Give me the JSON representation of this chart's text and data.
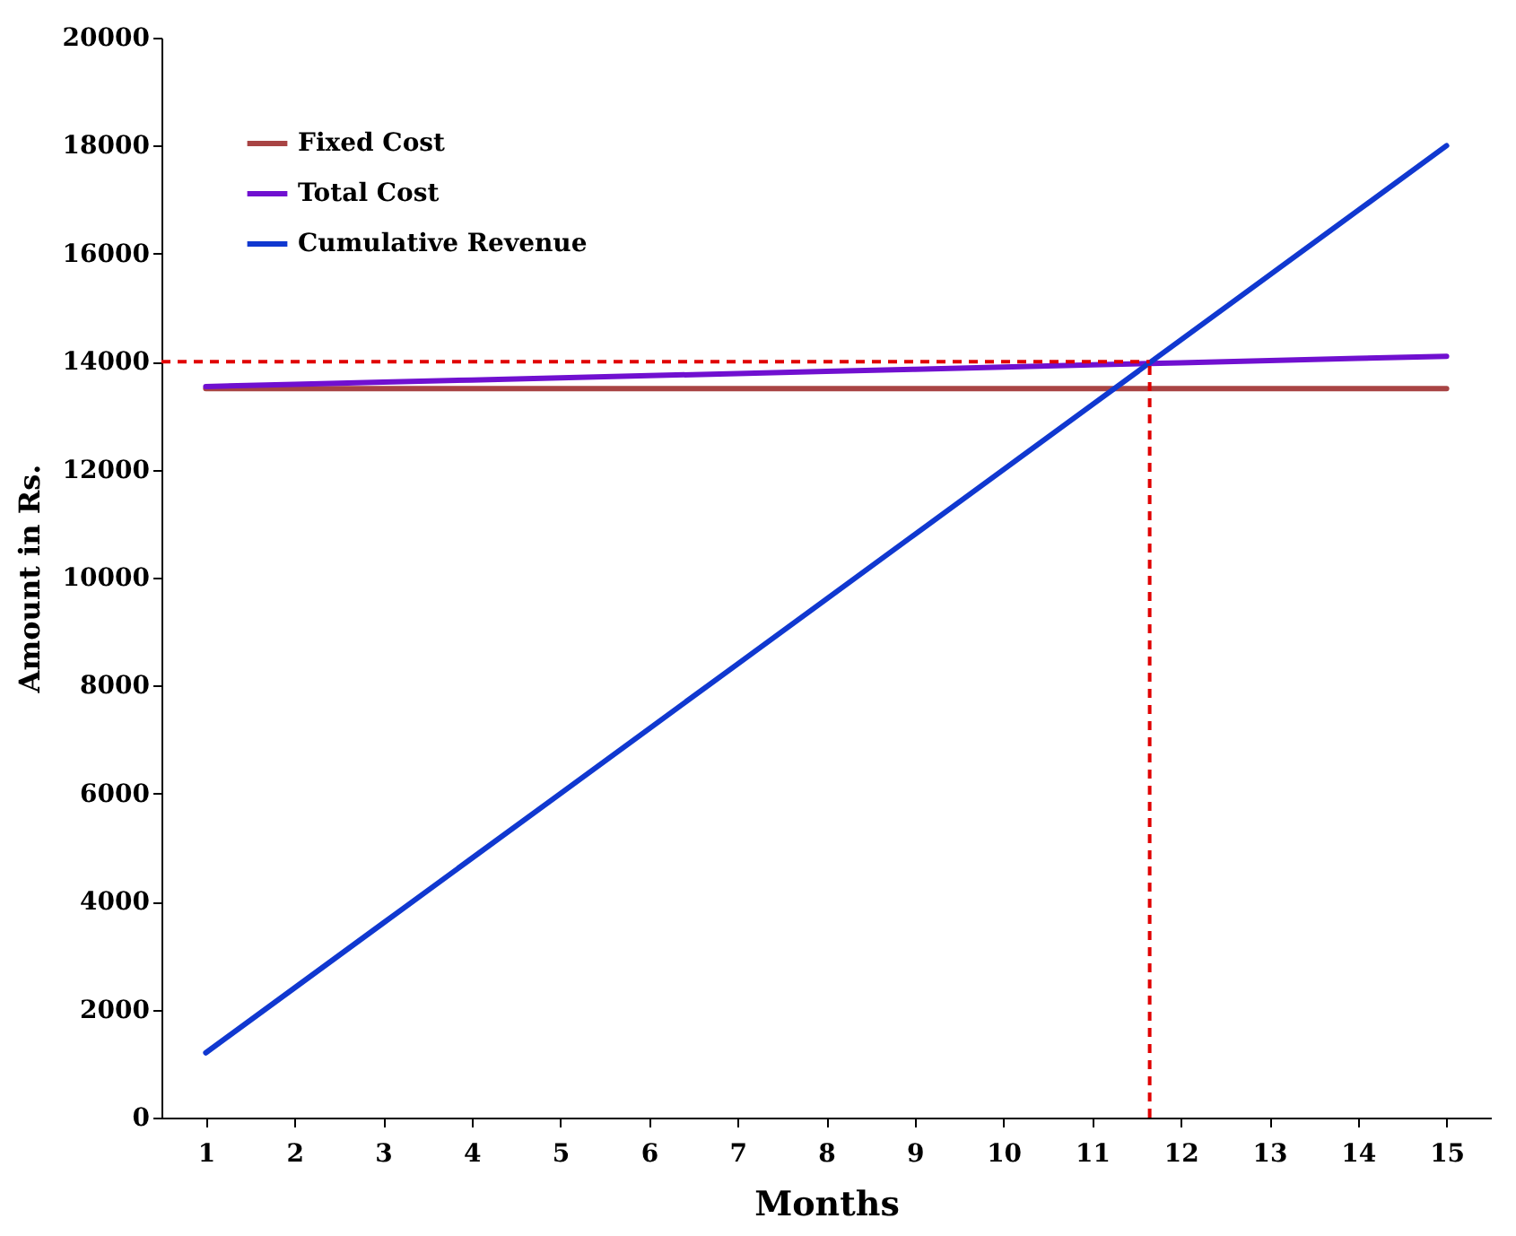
{
  "chart_data": {
    "type": "line",
    "xlabel": "Months",
    "ylabel": "Amount in Rs.",
    "x": [
      1,
      2,
      3,
      4,
      5,
      6,
      7,
      8,
      9,
      10,
      11,
      12,
      13,
      14,
      15
    ],
    "xlim": [
      0.5,
      15.5
    ],
    "xticks": [
      1,
      2,
      3,
      4,
      5,
      6,
      7,
      8,
      9,
      10,
      11,
      12,
      13,
      14,
      15
    ],
    "ylim": [
      0,
      20000
    ],
    "yticks": [
      0,
      2000,
      4000,
      6000,
      8000,
      10000,
      12000,
      14000,
      16000,
      18000,
      20000
    ],
    "series": [
      {
        "name": "Fixed Cost",
        "color": "#a84444",
        "values": [
          13500,
          13500,
          13500,
          13500,
          13500,
          13500,
          13500,
          13500,
          13500,
          13500,
          13500,
          13500,
          13500,
          13500,
          13500
        ]
      },
      {
        "name": "Total Cost",
        "color": "#7010d0",
        "values": [
          13540,
          13580,
          13620,
          13660,
          13700,
          13740,
          13780,
          13820,
          13860,
          13900,
          13940,
          13980,
          14020,
          14060,
          14100
        ]
      },
      {
        "name": "Cumulative Revenue",
        "color": "#1038d0",
        "values": [
          1200,
          2400,
          3600,
          4800,
          6000,
          7200,
          8400,
          9600,
          10800,
          12000,
          13200,
          14400,
          15600,
          16800,
          18000
        ]
      }
    ],
    "ref_lines": [
      {
        "axis": "y",
        "value": 14000,
        "label": null,
        "color": "#e00000",
        "line_style": "dashed"
      },
      {
        "axis": "x",
        "value": 11.65,
        "label": null,
        "color": "#e00000",
        "line_style": "dashed"
      }
    ],
    "legend": "top left",
    "grid": false,
    "marker": "none",
    "line_style": "solid"
  }
}
